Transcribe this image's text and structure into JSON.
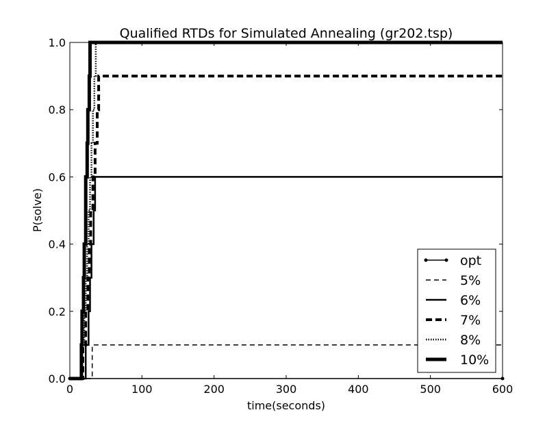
{
  "chart_data": {
    "type": "line",
    "title": "Qualified RTDs for Simulated Annealing (gr202.tsp)",
    "xlabel": "time(seconds)",
    "ylabel": "P(solve)",
    "xlim": [
      0,
      600
    ],
    "ylim": [
      0.0,
      1.0
    ],
    "x_ticks": [
      0,
      100,
      200,
      300,
      400,
      500,
      600
    ],
    "y_ticks": [
      0.0,
      0.2,
      0.4,
      0.6,
      0.8,
      1.0
    ],
    "x_tick_labels": [
      "0",
      "100",
      "200",
      "300",
      "400",
      "500",
      "600"
    ],
    "y_tick_labels": [
      "0.0",
      "0.2",
      "0.4",
      "0.6",
      "0.8",
      "1.0"
    ],
    "grid": false,
    "legend_position": "bottom-right",
    "legend_labels": [
      "opt",
      "5%",
      "6%",
      "7%",
      "8%",
      "10%"
    ],
    "colors": {
      "line": "#000000",
      "background": "#ffffff"
    },
    "series": [
      {
        "name": "opt",
        "style": "solid-marker",
        "x": [
          0,
          600
        ],
        "y": [
          0.0,
          0.0
        ]
      },
      {
        "name": "5%",
        "style": "dashed",
        "x": [
          0,
          31,
          31,
          600
        ],
        "y": [
          0.0,
          0.0,
          0.1,
          0.1
        ]
      },
      {
        "name": "6%",
        "style": "solid",
        "x": [
          0,
          22,
          22,
          26,
          26,
          28,
          28,
          30,
          30,
          33,
          33,
          35,
          35,
          600
        ],
        "y": [
          0.0,
          0.0,
          0.1,
          0.1,
          0.2,
          0.2,
          0.3,
          0.3,
          0.4,
          0.4,
          0.5,
          0.5,
          0.6,
          0.6
        ]
      },
      {
        "name": "7%",
        "style": "dashed-bold",
        "x": [
          0,
          18,
          18,
          22,
          22,
          25,
          25,
          27,
          27,
          29,
          29,
          32,
          32,
          35,
          35,
          38,
          38,
          40,
          40,
          600
        ],
        "y": [
          0.0,
          0.0,
          0.1,
          0.1,
          0.2,
          0.2,
          0.3,
          0.3,
          0.4,
          0.4,
          0.5,
          0.5,
          0.6,
          0.6,
          0.7,
          0.7,
          0.8,
          0.8,
          0.9,
          0.9
        ]
      },
      {
        "name": "8%",
        "style": "dotted",
        "x": [
          0,
          17,
          17,
          20,
          20,
          22,
          22,
          24,
          24,
          26,
          26,
          28,
          28,
          30,
          30,
          32,
          32,
          34,
          34,
          36,
          36,
          600
        ],
        "y": [
          0.0,
          0.0,
          0.1,
          0.1,
          0.2,
          0.2,
          0.3,
          0.3,
          0.4,
          0.4,
          0.5,
          0.5,
          0.6,
          0.6,
          0.7,
          0.7,
          0.8,
          0.8,
          0.9,
          0.9,
          1.0,
          1.0
        ]
      },
      {
        "name": "10%",
        "style": "solid-bold",
        "x": [
          0,
          16,
          16,
          17,
          17,
          19,
          19,
          20,
          20,
          22,
          22,
          24,
          24,
          25,
          25,
          27,
          27,
          28,
          28,
          600
        ],
        "y": [
          0.0,
          0.0,
          0.1,
          0.1,
          0.2,
          0.2,
          0.3,
          0.3,
          0.4,
          0.4,
          0.6,
          0.6,
          0.7,
          0.7,
          0.8,
          0.8,
          0.9,
          0.9,
          1.0,
          1.0
        ]
      }
    ]
  }
}
